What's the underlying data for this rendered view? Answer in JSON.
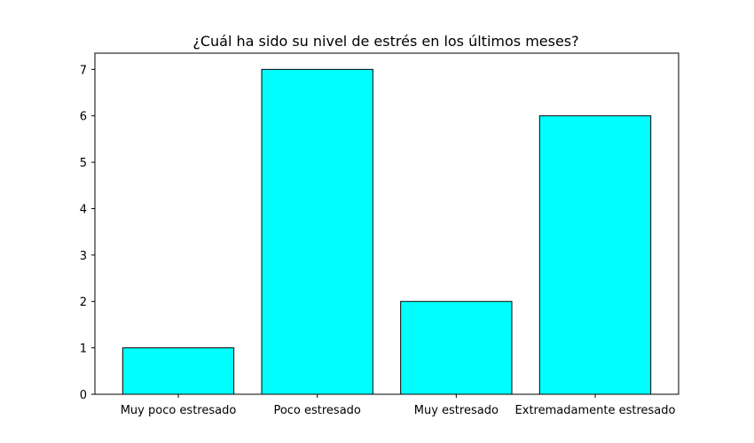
{
  "chart_data": {
    "type": "bar",
    "title": "¿Cuál ha sido su nivel de estrés en los últimos meses?",
    "xlabel": "",
    "ylabel": "",
    "categories": [
      "Muy poco estresado",
      "Poco estresado",
      "Muy estresado",
      "Extremadamente estresado"
    ],
    "values": [
      1,
      7,
      2,
      6
    ],
    "ylim": [
      0,
      7.35
    ],
    "yticks": [
      0,
      1,
      2,
      3,
      4,
      5,
      6,
      7
    ],
    "bar_color": "#00ffff",
    "edge_color": "#000000",
    "grid": false
  }
}
